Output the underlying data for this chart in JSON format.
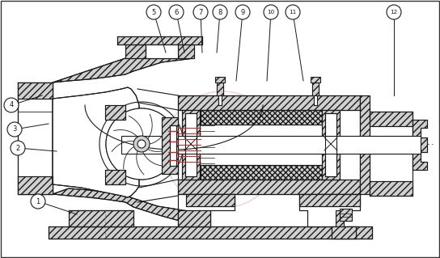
{
  "bg_color": "#ffffff",
  "line_color": "#1a1a1a",
  "hatch_fc": "#d0d0d0",
  "red_color": "#cc2222",
  "watermark_color": "#e8b0b0",
  "watermark_alpha": 0.55,
  "label_data": [
    [
      "1",
      47,
      249,
      95,
      265
    ],
    [
      "2",
      22,
      183,
      70,
      187
    ],
    [
      "3",
      18,
      160,
      60,
      153
    ],
    [
      "4",
      14,
      130,
      52,
      118
    ],
    [
      "5",
      190,
      15,
      205,
      65
    ],
    [
      "6",
      218,
      15,
      228,
      65
    ],
    [
      "7",
      248,
      15,
      250,
      65
    ],
    [
      "8",
      272,
      15,
      268,
      65
    ],
    [
      "9",
      300,
      15,
      292,
      100
    ],
    [
      "10",
      335,
      15,
      330,
      100
    ],
    [
      "11",
      362,
      15,
      375,
      100
    ],
    [
      "12",
      487,
      15,
      487,
      118
    ]
  ]
}
